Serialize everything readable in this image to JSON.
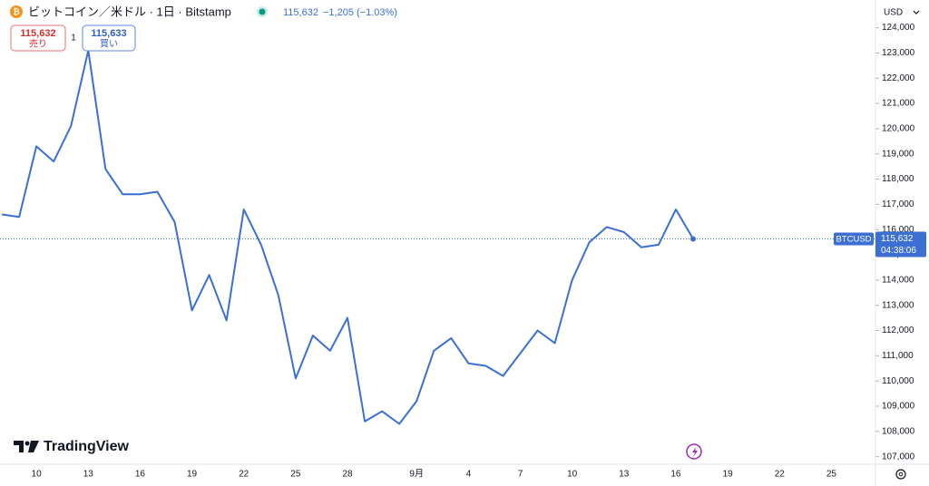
{
  "chart_data": {
    "type": "line",
    "title": "ビットコイン／米ドル · 1日 · Bitstamp",
    "header_price": "115,632",
    "header_change": "−1,205 (−1.03%)",
    "sell_price": "115,632",
    "sell_label": "売り",
    "quantity": "1",
    "buy_price": "115,633",
    "buy_label": "買い",
    "currency": "USD",
    "symbol": "BTCUSD",
    "countdown": "04:38:06",
    "brand": "TradingView",
    "categories": [
      null,
      null,
      "10",
      null,
      null,
      "13",
      null,
      null,
      "16",
      null,
      null,
      "19",
      null,
      null,
      "22",
      null,
      null,
      "25",
      null,
      null,
      "28",
      null,
      null,
      null,
      "9月",
      null,
      null,
      "4",
      null,
      null,
      "7",
      null,
      null,
      "10",
      null,
      null,
      "13",
      null,
      null,
      "16",
      null,
      null,
      "19",
      null,
      null,
      "22",
      null,
      null,
      "25",
      null,
      null
    ],
    "series": [
      {
        "name": "BTCUSD",
        "color": "#3b6fd4",
        "values": [
          116600,
          116500,
          119300,
          118700,
          120100,
          123100,
          118400,
          117400,
          117400,
          117500,
          116300,
          112800,
          114200,
          112400,
          116800,
          115400,
          113400,
          110100,
          111800,
          111200,
          112500,
          108400,
          108800,
          108300,
          109200,
          111200,
          111700,
          110700,
          110600,
          110200,
          111100,
          112000,
          111500,
          114000,
          115500,
          116100,
          115900,
          115300,
          115400,
          116800,
          115632,
          null,
          null,
          null,
          null,
          null,
          null,
          null,
          null,
          null,
          null
        ],
        "value_labels": [
          null,
          null,
          null,
          null,
          null,
          null,
          null,
          null,
          null,
          null,
          null,
          null,
          null,
          null,
          null,
          null,
          null,
          null,
          null,
          null,
          null,
          null,
          null,
          null,
          null,
          null,
          null,
          null,
          null,
          null,
          null,
          null,
          null,
          null,
          null,
          null,
          null,
          null,
          null,
          null,
          "115,632",
          null,
          null,
          null,
          null,
          null,
          null,
          null,
          null,
          null,
          null
        ]
      }
    ],
    "ylim": [
      106700,
      125100
    ],
    "yticks": [
      {
        "value": 107000,
        "label": "107,000"
      },
      {
        "value": 108000,
        "label": "108,000"
      },
      {
        "value": 109000,
        "label": "109,000"
      },
      {
        "value": 110000,
        "label": "110,000"
      },
      {
        "value": 111000,
        "label": "111,000"
      },
      {
        "value": 112000,
        "label": "112,000"
      },
      {
        "value": 113000,
        "label": "113,000"
      },
      {
        "value": 114000,
        "label": "114,000"
      },
      {
        "value": 115000,
        "label": "115,000"
      },
      {
        "value": 116000,
        "label": "116,000"
      },
      {
        "value": 117000,
        "label": "117,000"
      },
      {
        "value": 118000,
        "label": "118,000"
      },
      {
        "value": 119000,
        "label": "119,000"
      },
      {
        "value": 120000,
        "label": "120,000"
      },
      {
        "value": 121000,
        "label": "121,000"
      },
      {
        "value": 122000,
        "label": "122,000"
      },
      {
        "value": 123000,
        "label": "123,000"
      },
      {
        "value": 124000,
        "label": "124,000"
      }
    ],
    "grid": false
  }
}
